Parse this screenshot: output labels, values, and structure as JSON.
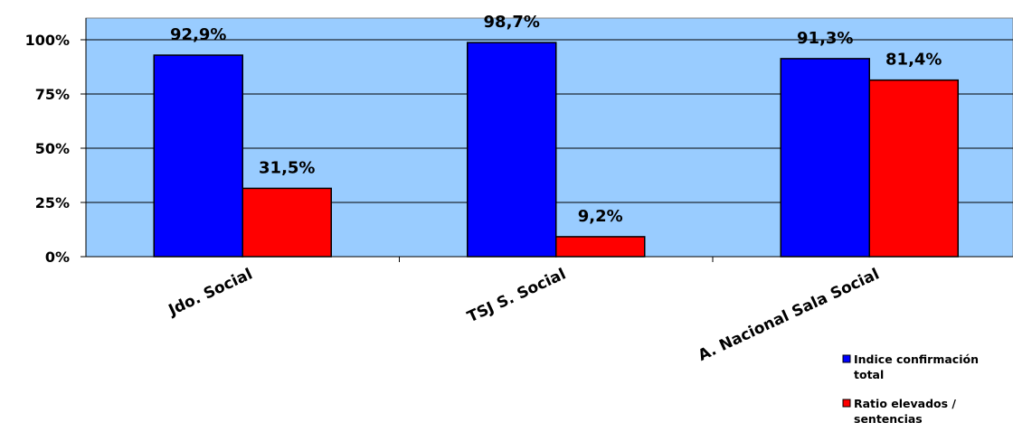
{
  "chart_data": {
    "type": "bar",
    "categories": [
      "Jdo. Social",
      "TSJ S. Social",
      "A. Nacional Sala Social"
    ],
    "series": [
      {
        "name": "Indice confirmación total",
        "legend_lines": [
          "Indice confirmación",
          "total"
        ],
        "values": [
          92.9,
          98.7,
          91.3
        ],
        "labels": [
          "92,9%",
          "98,7%",
          "91,3%"
        ],
        "color": "#0000ff"
      },
      {
        "name": "Ratio elevados / sentencias",
        "legend_lines": [
          "Ratio elevados /",
          "sentencias"
        ],
        "values": [
          31.5,
          9.2,
          81.4
        ],
        "labels": [
          "31,5%",
          "9,2%",
          "81,4%"
        ],
        "color": "#ff0000"
      }
    ],
    "yticks": [
      {
        "value": 0,
        "label": "0%"
      },
      {
        "value": 25,
        "label": "25%"
      },
      {
        "value": 50,
        "label": "50%"
      },
      {
        "value": 75,
        "label": "75%"
      },
      {
        "value": 100,
        "label": "100%"
      }
    ],
    "ylim": [
      0,
      110
    ],
    "grid": true,
    "plot_background": "#99ccff",
    "legend_position": "bottom-right"
  }
}
